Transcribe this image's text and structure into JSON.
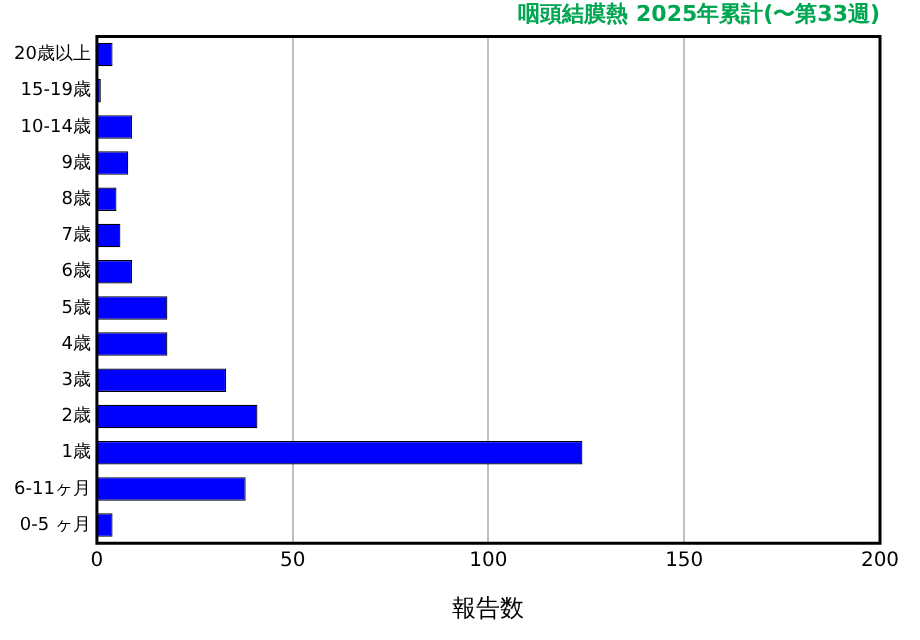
{
  "chart_data": {
    "type": "bar",
    "orientation": "horizontal",
    "title": "咽頭結膜熱 2025年累計(〜第33週)",
    "xlabel": "報告数",
    "categories": [
      "20歳以上",
      "15-19歳",
      "10-14歳",
      "9歳",
      "8歳",
      "7歳",
      "6歳",
      "5歳",
      "4歳",
      "3歳",
      "2歳",
      "1歳",
      "6-11ヶ月",
      "0-5 ヶ月"
    ],
    "values": [
      4,
      1,
      9,
      8,
      5,
      6,
      9,
      18,
      18,
      33,
      41,
      124,
      38,
      4
    ],
    "color": "#0000ff",
    "xlim": [
      0,
      200
    ],
    "xticks": [
      0,
      50,
      100,
      150,
      200
    ],
    "grid": "x",
    "legend": false
  }
}
